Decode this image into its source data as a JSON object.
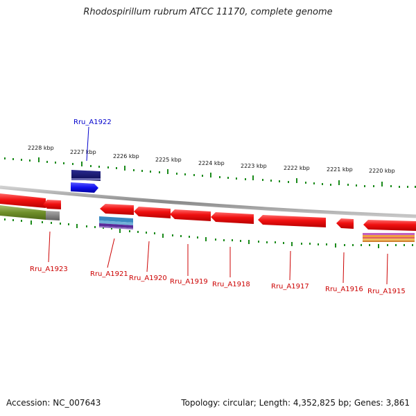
{
  "title": "Rhodospirillum rubrum ATCC 11170, complete genome",
  "footer": {
    "accession": "Accession: NC_007643",
    "summary": "Topology: circular; Length: 4,352,825 bp; Genes: 3,861"
  },
  "scale_labels": [
    "2228 kbp",
    "2227 kbp",
    "2226 kbp",
    "2225 kbp",
    "2224 kbp",
    "2223 kbp",
    "2222 kbp",
    "2221 kbp",
    "2220 kbp"
  ],
  "gene_labels": [
    "Rru_A1922",
    "Rru_A1923",
    "Rru_A1921",
    "Rru_A1920",
    "Rru_A1919",
    "Rru_A1918",
    "Rru_A1917",
    "Rru_A1916",
    "Rru_A1915"
  ],
  "colors": {
    "gene_forward": "#e8121a",
    "cds_blue": "#1010ee",
    "cds_navy": "#10106e",
    "label_red": "#cc0000",
    "label_blue": "#0000cc",
    "tick_green": "#1a8a1a",
    "backbone": "#8a8a8a"
  }
}
